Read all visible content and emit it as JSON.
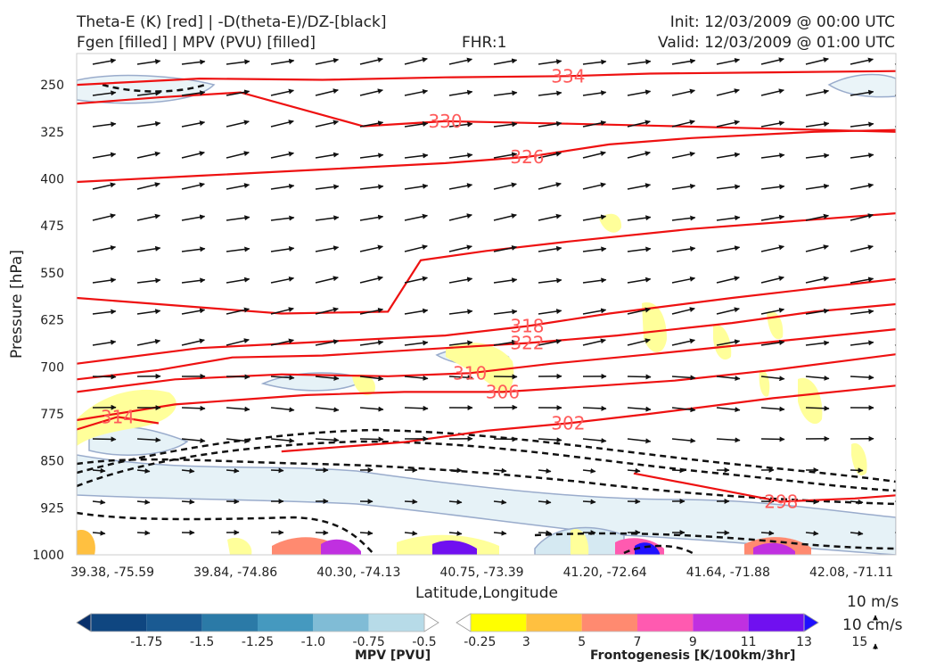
{
  "header": {
    "title_line1": "Theta-E (K) [red] | -D(theta-E)/DZ-[black]",
    "title_line2": "Fgen [filled] | MPV (PVU) [filled]",
    "fhr": "FHR:1",
    "init": "Init: 12/03/2009 @ 00:00 UTC",
    "valid": "Valid: 12/03/2009 @ 01:00 UTC"
  },
  "chart_data": {
    "type": "cross-section",
    "xlabel": "Latitude,Longitude",
    "ylabel": "Pressure [hPa]",
    "x_ticks": [
      "39.38, -75.59",
      "39.84, -74.86",
      "40.30, -74.13",
      "40.75, -73.39",
      "41.20, -72.64",
      "41.64, -71.88",
      "42.08, -71.11"
    ],
    "y_ticks": [
      250,
      325,
      400,
      475,
      550,
      625,
      700,
      775,
      850,
      925,
      1000
    ],
    "ylim": [
      200,
      1000
    ],
    "theta_e_contours": [
      {
        "label": "334",
        "points": [
          [
            0,
            250
          ],
          [
            0.15,
            240
          ],
          [
            0.3,
            242
          ],
          [
            0.45,
            238
          ],
          [
            0.6,
            236
          ],
          [
            0.7,
            232
          ],
          [
            0.85,
            230
          ],
          [
            1.0,
            228
          ]
        ]
      },
      {
        "label": "330",
        "points": [
          [
            0,
            280
          ],
          [
            0.1,
            270
          ],
          [
            0.2,
            262
          ],
          [
            0.35,
            316
          ],
          [
            0.45,
            308
          ],
          [
            0.6,
            312
          ],
          [
            0.7,
            315
          ],
          [
            0.85,
            320
          ],
          [
            1.0,
            325
          ]
        ]
      },
      {
        "label": "326",
        "points": [
          [
            0,
            405
          ],
          [
            0.15,
            395
          ],
          [
            0.3,
            385
          ],
          [
            0.45,
            375
          ],
          [
            0.55,
            365
          ],
          [
            0.65,
            345
          ],
          [
            0.75,
            335
          ],
          [
            0.9,
            325
          ],
          [
            1.0,
            322
          ]
        ]
      },
      {
        "label": "",
        "points": [
          [
            0,
            590
          ],
          [
            0.1,
            600
          ],
          [
            0.25,
            615
          ],
          [
            0.38,
            612
          ],
          [
            0.42,
            530
          ],
          [
            0.5,
            515
          ],
          [
            0.6,
            500
          ],
          [
            0.75,
            480
          ],
          [
            0.9,
            465
          ],
          [
            1.0,
            455
          ]
        ]
      },
      {
        "label": "318",
        "points": [
          [
            0,
            695
          ],
          [
            0.15,
            670
          ],
          [
            0.3,
            660
          ],
          [
            0.45,
            650
          ],
          [
            0.55,
            635
          ],
          [
            0.65,
            615
          ],
          [
            0.8,
            590
          ],
          [
            0.9,
            575
          ],
          [
            1.0,
            560
          ]
        ]
      },
      {
        "label": "322",
        "points": [
          [
            0,
            720
          ],
          [
            0.1,
            705
          ],
          [
            0.19,
            685
          ],
          [
            0.3,
            682
          ],
          [
            0.45,
            670
          ],
          [
            0.55,
            662
          ],
          [
            0.66,
            650
          ],
          [
            0.8,
            630
          ],
          [
            0.9,
            612
          ],
          [
            1.0,
            600
          ]
        ]
      },
      {
        "label": "310",
        "points": [
          [
            0,
            740
          ],
          [
            0.12,
            720
          ],
          [
            0.25,
            712
          ],
          [
            0.38,
            715
          ],
          [
            0.48,
            710
          ],
          [
            0.58,
            695
          ],
          [
            0.7,
            680
          ],
          [
            0.85,
            660
          ],
          [
            1.0,
            640
          ]
        ]
      },
      {
        "label": "306",
        "points": [
          [
            0,
            785
          ],
          [
            0.12,
            760
          ],
          [
            0.28,
            745
          ],
          [
            0.4,
            740
          ],
          [
            0.52,
            740
          ],
          [
            0.64,
            730
          ],
          [
            0.73,
            722
          ],
          [
            0.85,
            705
          ],
          [
            1.0,
            680
          ]
        ]
      },
      {
        "label": "314",
        "points": [
          [
            0,
            800
          ],
          [
            0.05,
            780
          ],
          [
            0.1,
            790
          ]
        ]
      },
      {
        "label": "302",
        "points": [
          [
            0.25,
            835
          ],
          [
            0.4,
            820
          ],
          [
            0.5,
            802
          ],
          [
            0.6,
            790
          ],
          [
            0.7,
            775
          ],
          [
            0.85,
            750
          ],
          [
            1.0,
            730
          ]
        ]
      },
      {
        "label": "298",
        "points": [
          [
            0.68,
            870
          ],
          [
            0.78,
            895
          ],
          [
            0.86,
            915
          ],
          [
            0.95,
            910
          ],
          [
            1.0,
            905
          ]
        ]
      }
    ],
    "mpv_colorbar": {
      "label": "MPV [PVU]",
      "ticks": [
        "-1.75",
        "-1.5",
        "-1.25",
        "-1.0",
        "-0.75",
        "-0.5",
        "-0.25"
      ],
      "colors": [
        "#08306b",
        "#0f4680",
        "#1a5a92",
        "#2b7aa7",
        "#4599bf",
        "#80bcd6",
        "#b7dbe8",
        "#ffffff"
      ]
    },
    "fgen_colorbar": {
      "label": "Frontogenesis [K/100km/3hr]",
      "ticks": [
        "3",
        "5",
        "7",
        "9",
        "11",
        "13",
        "15"
      ],
      "colors": [
        "#ffffff",
        "#ffff00",
        "#ffc040",
        "#ff8a70",
        "#ff5ab0",
        "#c030e0",
        "#7010f0",
        "#2010ff"
      ]
    },
    "vector_reference": {
      "speed_label": "10 m/s",
      "vertical_label": "10 cm/s"
    }
  }
}
